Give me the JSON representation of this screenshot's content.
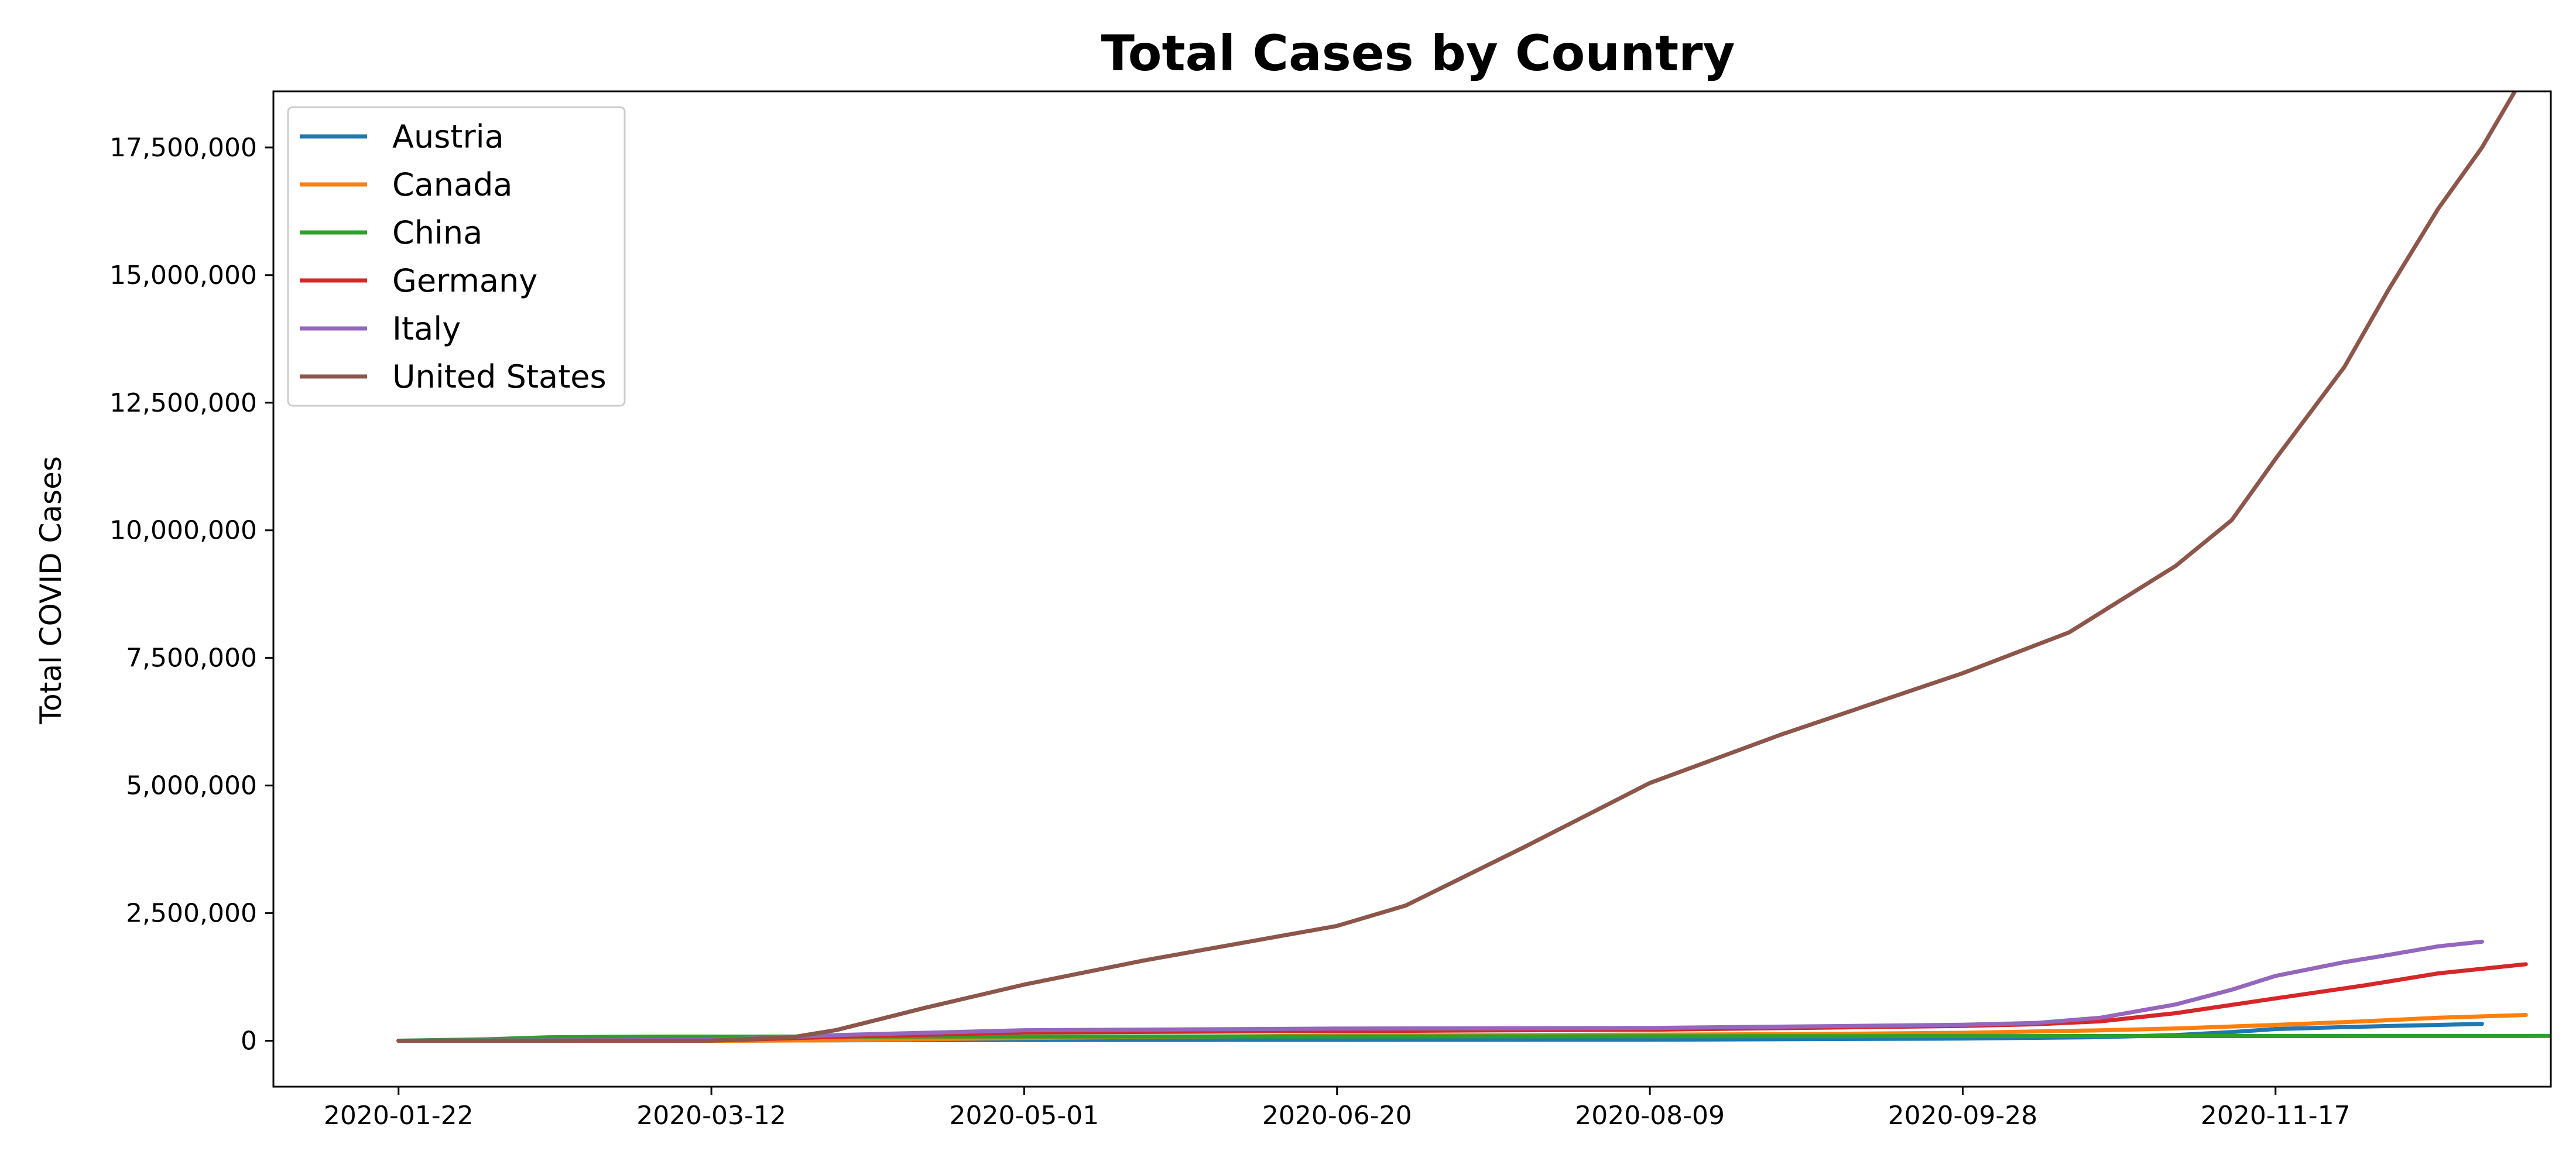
{
  "chart_data": {
    "type": "line",
    "title": "Total Cases by Country",
    "xlabel": "",
    "ylabel": "Total COVID Cases",
    "x_start": "2020-01-22",
    "x_end": "2020-12-20",
    "xticks": [
      "2020-01-22",
      "2020-03-12",
      "2020-05-01",
      "2020-06-20",
      "2020-08-09",
      "2020-09-28",
      "2020-11-17"
    ],
    "yticks": [
      0,
      2500000,
      5000000,
      7500000,
      10000000,
      12500000,
      15000000,
      17500000
    ],
    "ytick_labels": [
      "0",
      "2,500,000",
      "5,000,000",
      "7,500,000",
      "10,000,000",
      "12,500,000",
      "15,000,000",
      "17,500,000"
    ],
    "ylim": [
      -900000,
      18600000
    ],
    "xlim": [
      "2020-01-02",
      "2020-12-31"
    ],
    "grid": false,
    "legend_position": "top-left",
    "series": [
      {
        "name": "Austria",
        "color": "#1f77b4",
        "points": [
          [
            "2020-01-22",
            0
          ],
          [
            "2020-03-12",
            300
          ],
          [
            "2020-04-01",
            10000
          ],
          [
            "2020-05-01",
            15500
          ],
          [
            "2020-06-20",
            17300
          ],
          [
            "2020-08-09",
            21500
          ],
          [
            "2020-09-28",
            43000
          ],
          [
            "2020-10-20",
            70000
          ],
          [
            "2020-11-01",
            110000
          ],
          [
            "2020-11-10",
            170000
          ],
          [
            "2020-11-17",
            230000
          ],
          [
            "2020-11-28",
            268000
          ],
          [
            "2020-12-05",
            288000
          ],
          [
            "2020-12-13",
            310000
          ],
          [
            "2020-12-20",
            330000
          ]
        ]
      },
      {
        "name": "Canada",
        "color": "#ff7f0e",
        "points": [
          [
            "2020-01-22",
            0
          ],
          [
            "2020-03-12",
            150
          ],
          [
            "2020-04-01",
            9000
          ],
          [
            "2020-05-01",
            55000
          ],
          [
            "2020-06-20",
            100000
          ],
          [
            "2020-08-09",
            120000
          ],
          [
            "2020-09-01",
            130000
          ],
          [
            "2020-09-28",
            155000
          ],
          [
            "2020-10-20",
            205000
          ],
          [
            "2020-11-01",
            240000
          ],
          [
            "2020-11-17",
            310000
          ],
          [
            "2020-12-01",
            380000
          ],
          [
            "2020-12-13",
            450000
          ],
          [
            "2020-12-27",
            505000
          ]
        ]
      },
      {
        "name": "China",
        "color": "#2ca02c",
        "points": [
          [
            "2020-01-22",
            550
          ],
          [
            "2020-02-05",
            28000
          ],
          [
            "2020-02-15",
            68000
          ],
          [
            "2020-03-01",
            80000
          ],
          [
            "2020-03-12",
            81000
          ],
          [
            "2020-05-01",
            83900
          ],
          [
            "2020-06-20",
            84600
          ],
          [
            "2020-08-09",
            88000
          ],
          [
            "2020-09-28",
            90500
          ],
          [
            "2020-11-17",
            92500
          ],
          [
            "2020-12-31",
            95000
          ]
        ]
      },
      {
        "name": "Germany",
        "color": "#d62728",
        "points": [
          [
            "2020-01-22",
            0
          ],
          [
            "2020-03-12",
            2700
          ],
          [
            "2020-04-01",
            77000
          ],
          [
            "2020-05-01",
            163000
          ],
          [
            "2020-06-20",
            190000
          ],
          [
            "2020-08-09",
            216000
          ],
          [
            "2020-09-28",
            290000
          ],
          [
            "2020-10-10",
            325000
          ],
          [
            "2020-10-20",
            380000
          ],
          [
            "2020-11-01",
            540000
          ],
          [
            "2020-11-17",
            830000
          ],
          [
            "2020-12-01",
            1080000
          ],
          [
            "2020-12-13",
            1320000
          ],
          [
            "2020-12-27",
            1500000
          ]
        ]
      },
      {
        "name": "Italy",
        "color": "#9467bd",
        "points": [
          [
            "2020-01-22",
            0
          ],
          [
            "2020-03-12",
            15000
          ],
          [
            "2020-04-01",
            110000
          ],
          [
            "2020-05-01",
            206000
          ],
          [
            "2020-06-20",
            238000
          ],
          [
            "2020-08-09",
            250000
          ],
          [
            "2020-09-28",
            312000
          ],
          [
            "2020-10-10",
            350000
          ],
          [
            "2020-10-20",
            450000
          ],
          [
            "2020-11-01",
            710000
          ],
          [
            "2020-11-10",
            1000000
          ],
          [
            "2020-11-17",
            1270000
          ],
          [
            "2020-11-28",
            1540000
          ],
          [
            "2020-12-05",
            1680000
          ],
          [
            "2020-12-13",
            1850000
          ],
          [
            "2020-12-20",
            1940000
          ]
        ]
      },
      {
        "name": "United States",
        "color": "#8c564b",
        "points": [
          [
            "2020-01-22",
            1
          ],
          [
            "2020-03-12",
            1700
          ],
          [
            "2020-03-25",
            70000
          ],
          [
            "2020-04-01",
            210000
          ],
          [
            "2020-04-15",
            640000
          ],
          [
            "2020-05-01",
            1100000
          ],
          [
            "2020-05-20",
            1570000
          ],
          [
            "2020-06-20",
            2250000
          ],
          [
            "2020-07-01",
            2650000
          ],
          [
            "2020-07-20",
            3800000
          ],
          [
            "2020-08-09",
            5050000
          ],
          [
            "2020-08-30",
            6000000
          ],
          [
            "2020-09-28",
            7200000
          ],
          [
            "2020-10-15",
            8000000
          ],
          [
            "2020-11-01",
            9300000
          ],
          [
            "2020-11-10",
            10200000
          ],
          [
            "2020-11-17",
            11400000
          ],
          [
            "2020-11-28",
            13200000
          ],
          [
            "2020-12-05",
            14700000
          ],
          [
            "2020-12-13",
            16300000
          ],
          [
            "2020-12-20",
            17500000
          ],
          [
            "2020-12-31",
            19800000
          ]
        ]
      }
    ]
  }
}
